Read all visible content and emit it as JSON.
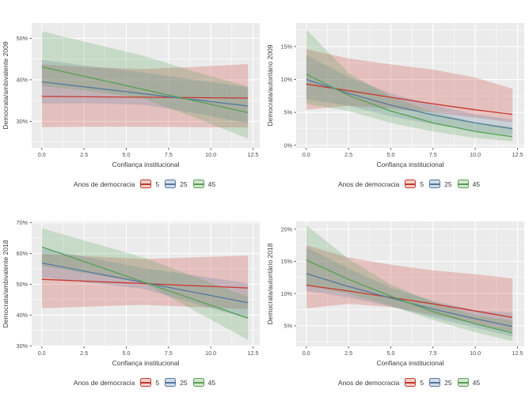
{
  "style": {
    "background": "#ffffff",
    "panel_bg": "#ebebeb",
    "grid_color": "#ffffff",
    "tick_mark_color": "#333333",
    "tick_text_color": "#4d4d4d",
    "axis_title_color": "#3a3a3a"
  },
  "legend": {
    "title": "Anos de democracia",
    "items": [
      {
        "label": "5",
        "color": "#c8382e",
        "key_fill": "#eed0ca"
      },
      {
        "label": "25",
        "color": "#54789e",
        "key_fill": "#d2dbe6"
      },
      {
        "label": "45",
        "color": "#55a054",
        "key_fill": "#d6e4cf"
      }
    ]
  },
  "chart_data": [
    {
      "type": "line",
      "ylabel": "Democrata/ambivalente 2009",
      "xlabel": "Confiança institucional",
      "xlim": [
        -0.6,
        12.9
      ],
      "ylim": [
        23.6,
        53.7
      ],
      "xticks": [
        0,
        2.5,
        5,
        7.5,
        10,
        12.5
      ],
      "yticks": [
        30,
        40,
        50
      ],
      "ytick_suffix": "%",
      "legend_title": "Anos de democracia",
      "series": [
        {
          "name": "5",
          "color": "#c8382e",
          "fill_alpha": 0.24,
          "line": [
            [
              0,
              36.0
            ],
            [
              12.2,
              35.6
            ]
          ],
          "band": [
            [
              0,
              28.6,
              43.7
            ],
            [
              3,
              28.7,
              43.0
            ],
            [
              6,
              28.7,
              42.6
            ],
            [
              9,
              28.6,
              43.1
            ],
            [
              12.2,
              28.5,
              43.8
            ]
          ]
        },
        {
          "name": "25",
          "color": "#54789e",
          "fill_alpha": 0.22,
          "line": [
            [
              0,
              39.5
            ],
            [
              12.2,
              33.7
            ]
          ],
          "band": [
            [
              0,
              34.3,
              44.8
            ],
            [
              3,
              34.3,
              43.2
            ],
            [
              6,
              34.0,
              41.8
            ],
            [
              9,
              32.0,
              40.0
            ],
            [
              12.2,
              29.5,
              38.2
            ]
          ]
        },
        {
          "name": "45",
          "color": "#55a054",
          "fill_alpha": 0.24,
          "line": [
            [
              0,
              43.1
            ],
            [
              12.2,
              32.1
            ]
          ],
          "band": [
            [
              0,
              38.5,
              51.7
            ],
            [
              3,
              37.2,
              48.7
            ],
            [
              6,
              35.5,
              45.8
            ],
            [
              9,
              31.0,
              42.0
            ],
            [
              12.2,
              25.8,
              38.4
            ]
          ]
        }
      ]
    },
    {
      "type": "line",
      "ylabel": "Democrata/autoritário 2009",
      "xlabel": "Confiança institucional",
      "xlim": [
        -0.6,
        12.9
      ],
      "ylim": [
        -0.4,
        18.6
      ],
      "xticks": [
        0,
        2.5,
        5,
        7.5,
        10,
        12.5
      ],
      "yticks": [
        0,
        5,
        10,
        15
      ],
      "ytick_suffix": "%",
      "legend_title": "Anos de democracia",
      "series": [
        {
          "name": "5",
          "color": "#c8382e",
          "fill_alpha": 0.24,
          "line": [
            [
              0,
              9.3
            ],
            [
              2.5,
              8.3
            ],
            [
              5,
              7.3
            ],
            [
              7.5,
              6.3
            ],
            [
              10,
              5.4
            ],
            [
              12.2,
              4.7
            ]
          ],
          "band": [
            [
              0,
              5.4,
              14.6
            ],
            [
              2.5,
              6.0,
              13.2
            ],
            [
              5,
              5.6,
              12.3
            ],
            [
              7.5,
              5.0,
              11.5
            ],
            [
              10,
              4.2,
              10.3
            ],
            [
              12.2,
              3.5,
              8.6
            ]
          ]
        },
        {
          "name": "25",
          "color": "#54789e",
          "fill_alpha": 0.22,
          "line": [
            [
              0,
              10.0
            ],
            [
              2.5,
              7.9
            ],
            [
              5,
              6.1
            ],
            [
              7.5,
              4.6
            ],
            [
              10,
              3.4
            ],
            [
              12.2,
              2.5
            ]
          ],
          "band": [
            [
              0,
              7.0,
              13.7
            ],
            [
              2.5,
              6.0,
              10.4
            ],
            [
              5,
              4.4,
              7.9
            ],
            [
              7.5,
              3.2,
              6.1
            ],
            [
              10,
              2.2,
              4.7
            ],
            [
              12.2,
              1.5,
              3.9
            ]
          ]
        },
        {
          "name": "45",
          "color": "#55a054",
          "fill_alpha": 0.24,
          "line": [
            [
              0,
              10.8
            ],
            [
              2.5,
              7.6
            ],
            [
              5,
              5.2
            ],
            [
              7.5,
              3.4
            ],
            [
              10,
              2.1
            ],
            [
              12.2,
              1.3
            ]
          ],
          "band": [
            [
              0,
              6.3,
              17.6
            ],
            [
              2.5,
              5.2,
              11.0
            ],
            [
              5,
              3.4,
              7.4
            ],
            [
              7.5,
              2.1,
              5.1
            ],
            [
              10,
              1.1,
              3.5
            ],
            [
              12.2,
              0.6,
              2.8
            ]
          ]
        }
      ]
    },
    {
      "type": "line",
      "ylabel": "Democrata/ambivalente 2018",
      "xlabel": "Confiança institucional",
      "xlim": [
        -0.6,
        12.9
      ],
      "ylim": [
        29.8,
        70.4
      ],
      "xticks": [
        0,
        2.5,
        5,
        7.5,
        10,
        12.5
      ],
      "yticks": [
        30,
        40,
        50,
        60,
        70
      ],
      "ytick_suffix": "%",
      "legend_title": "Anos de democracia",
      "series": [
        {
          "name": "5",
          "color": "#c8382e",
          "fill_alpha": 0.24,
          "line": [
            [
              0,
              51.6
            ],
            [
              12.2,
              48.8
            ]
          ],
          "band": [
            [
              0,
              42.2,
              59.9
            ],
            [
              6,
              43.3,
              58.2
            ],
            [
              12.2,
              41.9,
              59.3
            ]
          ]
        },
        {
          "name": "25",
          "color": "#54789e",
          "fill_alpha": 0.22,
          "line": [
            [
              0,
              56.9
            ],
            [
              12.2,
              44.0
            ]
          ],
          "band": [
            [
              0,
              52.2,
              61.6
            ],
            [
              6,
              48.5,
              55.3
            ],
            [
              12.2,
              38.8,
              50.3
            ]
          ]
        },
        {
          "name": "45",
          "color": "#55a054",
          "fill_alpha": 0.24,
          "line": [
            [
              0,
              62.1
            ],
            [
              12.2,
              39.0
            ]
          ],
          "band": [
            [
              0,
              55.9,
              68.2
            ],
            [
              6,
              50.5,
              58.7
            ],
            [
              12.2,
              31.9,
              46.0
            ]
          ]
        }
      ]
    },
    {
      "type": "line",
      "ylabel": "Democrata/autoritário 2018",
      "xlabel": "Confiança institucional",
      "xlim": [
        -0.6,
        12.9
      ],
      "ylim": [
        1.8,
        21.2
      ],
      "xticks": [
        0,
        2.5,
        5,
        7.5,
        10,
        12.5
      ],
      "yticks": [
        5,
        10,
        15,
        20
      ],
      "ytick_suffix": "%",
      "legend_title": "Anos de democracia",
      "series": [
        {
          "name": "5",
          "color": "#c8382e",
          "fill_alpha": 0.24,
          "line": [
            [
              0,
              11.3
            ],
            [
              2.5,
              10.4
            ],
            [
              5,
              9.4
            ],
            [
              7.5,
              8.4
            ],
            [
              10,
              7.3
            ],
            [
              12.2,
              6.3
            ]
          ],
          "band": [
            [
              0,
              7.7,
              17.5
            ],
            [
              2.5,
              8.4,
              15.6
            ],
            [
              5,
              7.9,
              14.5
            ],
            [
              7.5,
              6.7,
              13.6
            ],
            [
              10,
              5.3,
              13.0
            ],
            [
              12.2,
              4.1,
              12.4
            ]
          ]
        },
        {
          "name": "25",
          "color": "#54789e",
          "fill_alpha": 0.22,
          "line": [
            [
              0,
              13.1
            ],
            [
              2.5,
              11.1
            ],
            [
              5,
              9.3
            ],
            [
              7.5,
              7.6
            ],
            [
              10,
              6.1
            ],
            [
              12.2,
              4.9
            ]
          ],
          "band": [
            [
              0,
              10.4,
              17.2
            ],
            [
              2.5,
              9.4,
              13.9
            ],
            [
              5,
              8.0,
              10.9
            ],
            [
              7.5,
              6.3,
              8.9
            ],
            [
              10,
              4.7,
              7.4
            ],
            [
              12.2,
              3.3,
              7.0
            ]
          ]
        },
        {
          "name": "45",
          "color": "#55a054",
          "fill_alpha": 0.24,
          "line": [
            [
              0,
              15.2
            ],
            [
              2.5,
              12.2
            ],
            [
              5,
              9.6
            ],
            [
              7.5,
              7.2
            ],
            [
              10,
              5.3
            ],
            [
              12.2,
              3.9
            ]
          ],
          "band": [
            [
              0,
              11.2,
              20.6
            ],
            [
              2.5,
              10.0,
              15.4
            ],
            [
              5,
              8.1,
              11.4
            ],
            [
              7.5,
              5.9,
              8.7
            ],
            [
              10,
              4.0,
              6.6
            ],
            [
              12.2,
              2.6,
              5.8
            ]
          ]
        }
      ]
    }
  ]
}
